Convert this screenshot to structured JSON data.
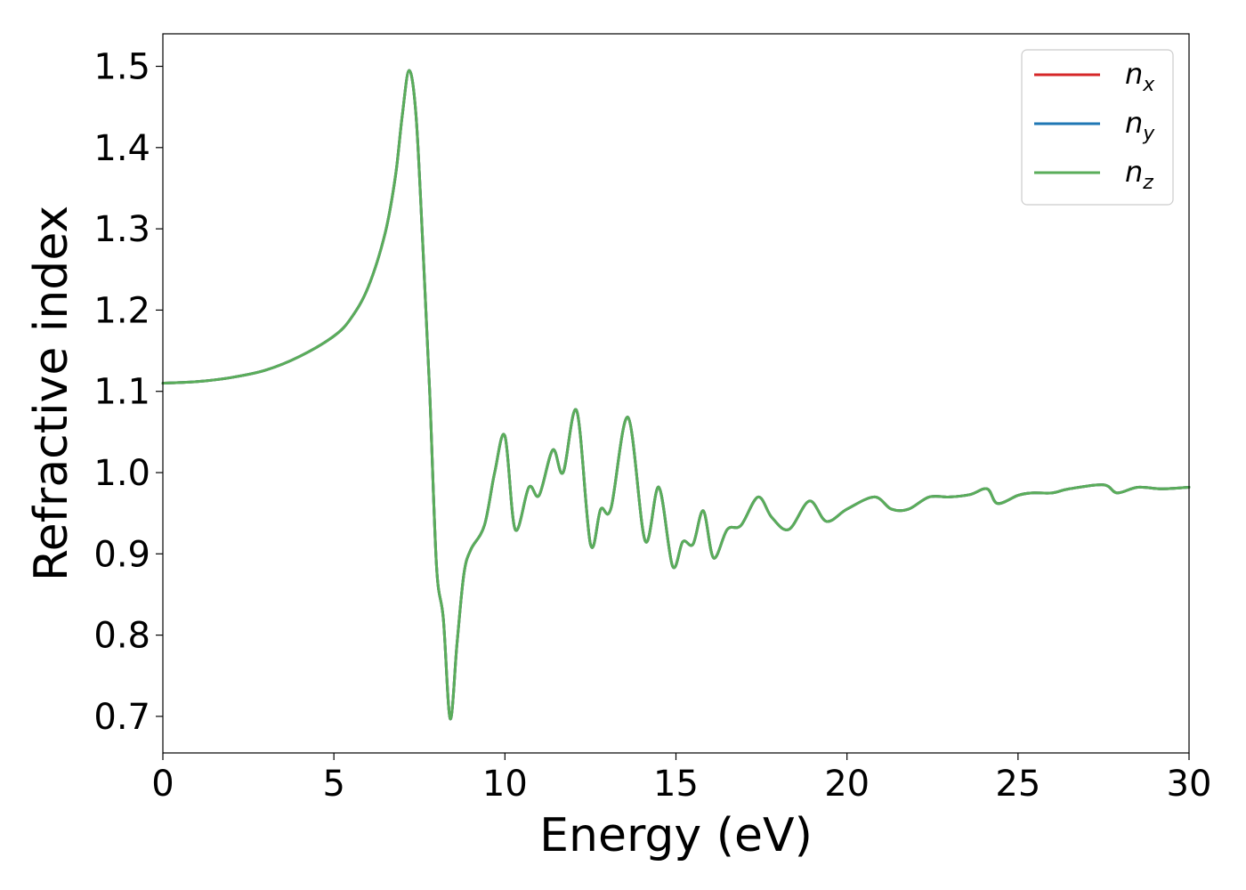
{
  "chart_data": {
    "type": "line",
    "title": "",
    "xlabel": "Energy (eV)",
    "ylabel": "Refractive index",
    "xlim": [
      0,
      30
    ],
    "ylim": [
      0.655,
      1.54
    ],
    "xticks": [
      0,
      5,
      10,
      15,
      20,
      25,
      30
    ],
    "xtick_labels": [
      "0",
      "5",
      "10",
      "15",
      "20",
      "25",
      "30"
    ],
    "yticks": [
      0.7,
      0.8,
      0.9,
      1.0,
      1.1,
      1.2,
      1.3,
      1.4,
      1.5
    ],
    "ytick_labels": [
      "0.7",
      "0.8",
      "0.9",
      "1.0",
      "1.1",
      "1.2",
      "1.3",
      "1.4",
      "1.5"
    ],
    "grid": false,
    "legend_position": "top-right",
    "x": [
      0,
      1,
      2,
      3,
      4,
      5,
      5.5,
      6,
      6.5,
      6.8,
      7.0,
      7.2,
      7.4,
      7.6,
      7.8,
      8.0,
      8.2,
      8.4,
      8.6,
      8.8,
      9.0,
      9.4,
      9.7,
      10.0,
      10.3,
      10.7,
      11.0,
      11.4,
      11.7,
      12.1,
      12.5,
      12.8,
      13.1,
      13.6,
      14.1,
      14.5,
      14.9,
      15.2,
      15.5,
      15.8,
      16.1,
      16.5,
      16.9,
      17.4,
      17.8,
      18.3,
      18.9,
      19.4,
      20.0,
      20.8,
      21.3,
      21.8,
      22.4,
      23.0,
      23.6,
      24.1,
      24.4,
      25.0,
      25.4,
      26.0,
      26.5,
      27.5,
      27.9,
      28.5,
      29.2,
      30.0
    ],
    "series": [
      {
        "name": "n",
        "name_sub": "x",
        "color": "#d62728",
        "values": [
          1.11,
          1.112,
          1.117,
          1.126,
          1.143,
          1.168,
          1.19,
          1.228,
          1.295,
          1.365,
          1.44,
          1.495,
          1.44,
          1.28,
          1.1,
          0.885,
          0.82,
          0.697,
          0.79,
          0.875,
          0.905,
          0.935,
          1.0,
          1.045,
          0.93,
          0.982,
          0.972,
          1.028,
          1.0,
          1.076,
          0.912,
          0.955,
          0.956,
          1.068,
          0.916,
          0.982,
          0.885,
          0.915,
          0.912,
          0.953,
          0.895,
          0.93,
          0.935,
          0.97,
          0.945,
          0.93,
          0.965,
          0.94,
          0.955,
          0.97,
          0.955,
          0.955,
          0.97,
          0.97,
          0.973,
          0.98,
          0.962,
          0.972,
          0.975,
          0.975,
          0.98,
          0.985,
          0.975,
          0.982,
          0.98,
          0.982
        ]
      },
      {
        "name": "n",
        "name_sub": "y",
        "color": "#1f77b4",
        "values": [
          1.11,
          1.112,
          1.117,
          1.126,
          1.143,
          1.168,
          1.19,
          1.228,
          1.295,
          1.365,
          1.44,
          1.495,
          1.44,
          1.28,
          1.1,
          0.885,
          0.82,
          0.697,
          0.79,
          0.875,
          0.905,
          0.935,
          1.0,
          1.045,
          0.93,
          0.982,
          0.972,
          1.028,
          1.0,
          1.076,
          0.912,
          0.955,
          0.956,
          1.068,
          0.916,
          0.982,
          0.885,
          0.915,
          0.912,
          0.953,
          0.895,
          0.93,
          0.935,
          0.97,
          0.945,
          0.93,
          0.965,
          0.94,
          0.955,
          0.97,
          0.955,
          0.955,
          0.97,
          0.97,
          0.973,
          0.98,
          0.962,
          0.972,
          0.975,
          0.975,
          0.98,
          0.985,
          0.975,
          0.982,
          0.98,
          0.982
        ]
      },
      {
        "name": "n",
        "name_sub": "z",
        "color": "#5aad5a",
        "values": [
          1.11,
          1.112,
          1.117,
          1.126,
          1.143,
          1.168,
          1.19,
          1.228,
          1.295,
          1.365,
          1.44,
          1.495,
          1.44,
          1.28,
          1.1,
          0.885,
          0.82,
          0.697,
          0.79,
          0.875,
          0.905,
          0.935,
          1.0,
          1.045,
          0.93,
          0.982,
          0.972,
          1.028,
          1.0,
          1.076,
          0.912,
          0.955,
          0.956,
          1.068,
          0.916,
          0.982,
          0.885,
          0.915,
          0.912,
          0.953,
          0.895,
          0.93,
          0.935,
          0.97,
          0.945,
          0.93,
          0.965,
          0.94,
          0.955,
          0.97,
          0.955,
          0.955,
          0.97,
          0.97,
          0.973,
          0.98,
          0.962,
          0.972,
          0.975,
          0.975,
          0.98,
          0.985,
          0.975,
          0.982,
          0.98,
          0.982
        ]
      }
    ]
  }
}
